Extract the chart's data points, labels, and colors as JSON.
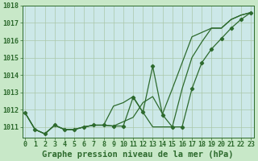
{
  "title": "Graphe pression niveau de la mer (hPa)",
  "background_color": "#c8e8c8",
  "plot_bg_color": "#cce8e8",
  "grid_color": "#aac8aa",
  "line_color": "#2d6a2d",
  "x_labels": [
    "0",
    "1",
    "2",
    "3",
    "4",
    "5",
    "6",
    "7",
    "8",
    "9",
    "10",
    "11",
    "12",
    "13",
    "14",
    "15",
    "16",
    "17",
    "18",
    "19",
    "20",
    "21",
    "22",
    "23"
  ],
  "x_values": [
    0,
    1,
    2,
    3,
    4,
    5,
    6,
    7,
    8,
    9,
    10,
    11,
    12,
    13,
    14,
    15,
    16,
    17,
    18,
    19,
    20,
    21,
    22,
    23
  ],
  "series1": [
    1011.8,
    1010.85,
    1010.6,
    1011.1,
    1010.85,
    1010.85,
    1011.0,
    1011.1,
    1011.1,
    1011.05,
    1011.3,
    1011.55,
    1012.4,
    1012.75,
    1011.75,
    1013.2,
    1014.7,
    1016.2,
    1016.45,
    1016.7,
    1016.7,
    1017.2,
    1017.45,
    1017.6
  ],
  "series2": [
    1011.8,
    1010.85,
    1010.6,
    1011.1,
    1010.85,
    1010.85,
    1011.0,
    1011.1,
    1011.1,
    1011.05,
    1011.05,
    1012.7,
    1011.85,
    1014.5,
    1011.7,
    1011.0,
    1011.0,
    1013.2,
    1014.7,
    1015.5,
    1016.1,
    1016.7,
    1017.2,
    1017.6
  ],
  "series3": [
    1011.8,
    1010.85,
    1010.6,
    1011.1,
    1010.85,
    1010.85,
    1011.0,
    1011.1,
    1011.1,
    1012.2,
    1012.4,
    1012.75,
    1011.85,
    1011.0,
    1011.0,
    1011.0,
    1013.2,
    1015.0,
    1015.9,
    1016.7,
    1016.7,
    1017.2,
    1017.45,
    1017.6
  ],
  "ylim_min": 1010.4,
  "ylim_max": 1018.0,
  "yticks": [
    1011,
    1012,
    1013,
    1014,
    1015,
    1016,
    1017,
    1018
  ],
  "title_fontsize": 7.5,
  "tick_fontsize": 6.0
}
